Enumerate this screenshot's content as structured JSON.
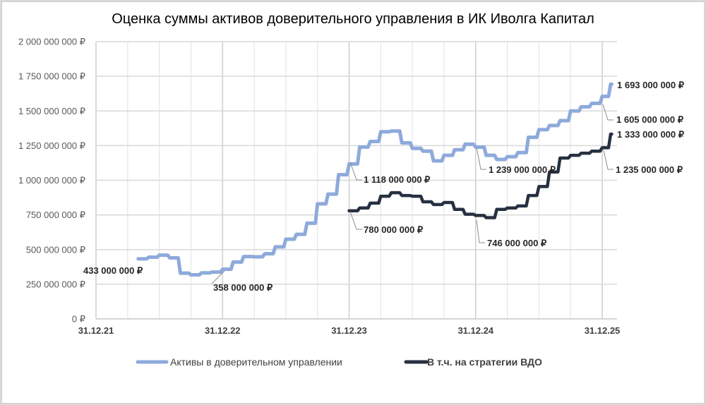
{
  "chart_data": {
    "type": "line",
    "title": "Оценка суммы активов доверительного управления в ИК Иволга Капитал",
    "xlabel": "",
    "ylabel": "",
    "ylim": [
      0,
      2000000000
    ],
    "yticks": [
      0,
      250000000,
      500000000,
      750000000,
      1000000000,
      1250000000,
      1500000000,
      1750000000,
      2000000000
    ],
    "ytick_labels": [
      "0 ₽",
      "250 000 000 ₽",
      "500 000 000 ₽",
      "750 000 000 ₽",
      "1 000 000 000 ₽",
      "1 250 000 000 ₽",
      "1 500 000 000 ₽",
      "1 750 000 000 ₽",
      "2 000 000 000 ₽"
    ],
    "xticks": [
      "31.12.21",
      "31.12.22",
      "31.12.23",
      "31.12.24",
      "31.12.25"
    ],
    "x_unit": "months since 31.12.21",
    "grid": {
      "major_horizontal": true,
      "major_vertical": true,
      "minor_vertical_every_months": 3
    },
    "legend_position": "bottom",
    "series": [
      {
        "name": "Активы в доверительном управлении",
        "color": "#8eaadb",
        "step": true,
        "x": [
          4,
          5,
          6,
          7,
          8,
          9,
          10,
          11,
          12,
          13,
          14,
          15,
          16,
          17,
          18,
          19,
          20,
          21,
          22,
          23,
          24,
          25,
          26,
          27,
          28,
          29,
          30,
          31,
          32,
          33,
          34,
          35,
          36,
          37,
          38,
          39,
          40,
          41,
          42,
          43,
          44,
          45,
          46,
          47,
          48,
          48.8
        ],
        "values": [
          433000000,
          445000000,
          460000000,
          440000000,
          330000000,
          318000000,
          332000000,
          338000000,
          358000000,
          410000000,
          450000000,
          448000000,
          470000000,
          520000000,
          575000000,
          610000000,
          690000000,
          830000000,
          900000000,
          1040000000,
          1118000000,
          1240000000,
          1280000000,
          1350000000,
          1355000000,
          1270000000,
          1230000000,
          1210000000,
          1140000000,
          1180000000,
          1220000000,
          1260000000,
          1239000000,
          1180000000,
          1150000000,
          1170000000,
          1200000000,
          1310000000,
          1365000000,
          1395000000,
          1430000000,
          1500000000,
          1530000000,
          1555000000,
          1605000000,
          1693000000
        ]
      },
      {
        "name": "В т.ч. на стратегии ВДО",
        "color": "#263040",
        "step": true,
        "x": [
          24,
          25,
          26,
          27,
          28,
          29,
          30,
          31,
          32,
          33,
          34,
          35,
          36,
          37,
          38,
          39,
          40,
          41,
          42,
          43,
          44,
          45,
          46,
          47,
          48,
          48.8
        ],
        "values": [
          780000000,
          800000000,
          835000000,
          885000000,
          910000000,
          890000000,
          885000000,
          845000000,
          825000000,
          840000000,
          790000000,
          755000000,
          746000000,
          730000000,
          790000000,
          800000000,
          815000000,
          890000000,
          955000000,
          1060000000,
          1160000000,
          1180000000,
          1195000000,
          1210000000,
          1235000000,
          1333000000
        ]
      }
    ],
    "annotations": [
      {
        "series": 0,
        "label": "433 000 000 ₽",
        "x": 4
      },
      {
        "series": 0,
        "label": "358 000 000 ₽",
        "x": 12
      },
      {
        "series": 0,
        "label": "1 118 000 000 ₽",
        "x": 24
      },
      {
        "series": 0,
        "label": "1 239 000 000 ₽",
        "x": 36
      },
      {
        "series": 0,
        "label": "1 605 000 000 ₽",
        "x": 48
      },
      {
        "series": 0,
        "label": "1 693 000 000 ₽",
        "x": 48.8
      },
      {
        "series": 1,
        "label": "780 000 000 ₽",
        "x": 24
      },
      {
        "series": 1,
        "label": "746 000 000 ₽",
        "x": 36
      },
      {
        "series": 1,
        "label": "1 235 000 000 ₽",
        "x": 48
      },
      {
        "series": 1,
        "label": "1 333 000 000 ₽",
        "x": 48.8
      }
    ]
  },
  "legend": {
    "items": [
      {
        "label": "Активы в доверительном управлении",
        "color": "#8eaadb"
      },
      {
        "label": "В т.ч. на стратегии ВДО",
        "color": "#263040"
      }
    ]
  }
}
